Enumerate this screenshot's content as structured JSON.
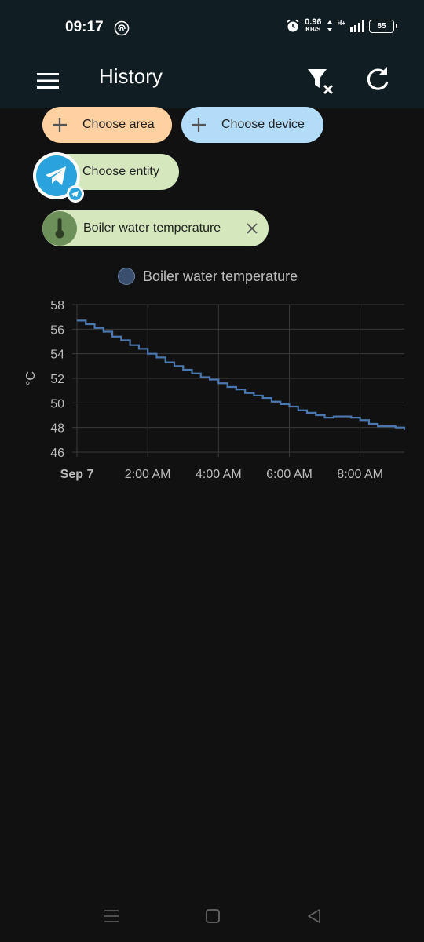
{
  "status_bar": {
    "time": "09:17",
    "speed_value": "0.96",
    "speed_unit": "KB/S",
    "network": "H+",
    "battery": "85",
    "icons": [
      "fingerprint-icon",
      "alarm-icon",
      "data-arrows-icon",
      "signal-icon",
      "battery-icon"
    ]
  },
  "app_bar": {
    "title": "History",
    "icons": [
      "menu-icon",
      "filter-remove-icon",
      "refresh-icon"
    ]
  },
  "target_picker": {
    "area_label": "Choose area",
    "device_label": "Choose device",
    "entity_label": "Choose entity",
    "selected_entity": "Boiler water temperature",
    "colors": {
      "area": "#ffd0a0",
      "device": "#b3dcf8",
      "entity": "#d4e7bd",
      "avatar": "#6d8f5a"
    }
  },
  "chart_data": {
    "type": "line",
    "title": "",
    "xlabel": "",
    "ylabel": "°C",
    "ylim": [
      46,
      58
    ],
    "yticks": [
      46,
      48,
      50,
      52,
      54,
      56,
      58
    ],
    "xticks": [
      "Sep 7",
      "2:00 AM",
      "4:00 AM",
      "6:00 AM",
      "8:00 AM"
    ],
    "xtick_hours": [
      0,
      2,
      4,
      6,
      8
    ],
    "xlim": [
      0,
      9.25
    ],
    "grid": true,
    "legend_position": "top-center",
    "series": [
      {
        "name": "Boiler water temperature",
        "color": "#4a78b0",
        "x": [
          0,
          0.25,
          0.5,
          0.75,
          1.0,
          1.25,
          1.5,
          1.75,
          2.0,
          2.25,
          2.5,
          2.75,
          3.0,
          3.25,
          3.5,
          3.75,
          4.0,
          4.25,
          4.5,
          4.75,
          5.0,
          5.25,
          5.5,
          5.75,
          6.0,
          6.25,
          6.5,
          6.75,
          7.0,
          7.25,
          7.5,
          7.75,
          8.0,
          8.25,
          8.5,
          8.75,
          9.0,
          9.25
        ],
        "y": [
          56.7,
          56.4,
          56.1,
          55.8,
          55.4,
          55.1,
          54.7,
          54.4,
          54.0,
          53.7,
          53.3,
          53.0,
          52.7,
          52.4,
          52.1,
          51.9,
          51.6,
          51.3,
          51.1,
          50.8,
          50.6,
          50.4,
          50.1,
          49.9,
          49.7,
          49.4,
          49.2,
          49.0,
          48.8,
          48.9,
          48.9,
          48.8,
          48.6,
          48.3,
          48.1,
          48.1,
          48.0,
          47.8
        ]
      }
    ]
  }
}
